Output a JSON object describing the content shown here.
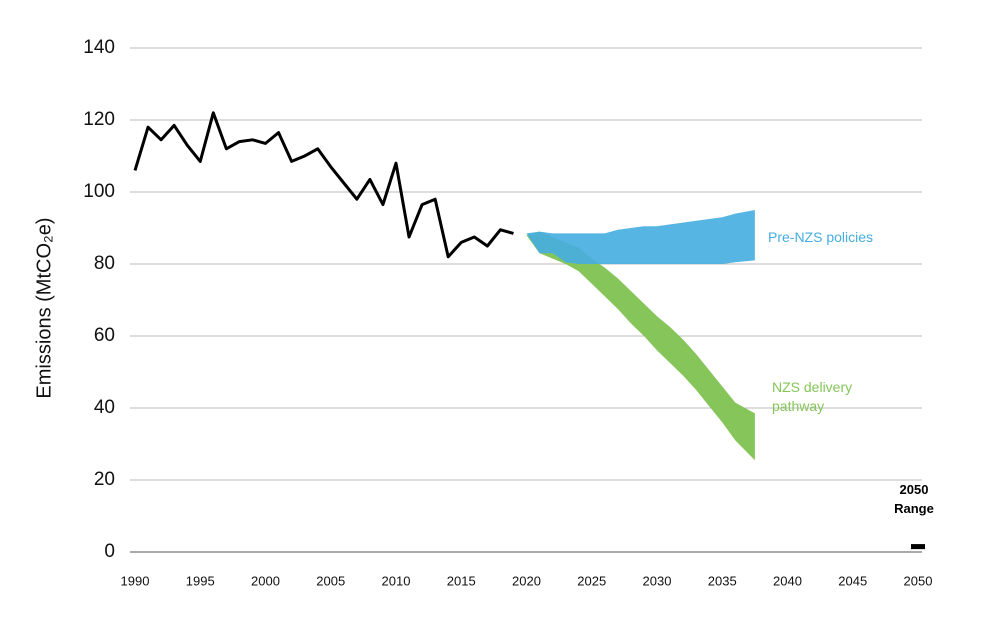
{
  "chart_data": {
    "type": "line",
    "y_label": "Emissions (MtCO₂e)",
    "xlim": [
      1990,
      2050
    ],
    "xticks": [
      1990,
      1995,
      2000,
      2005,
      2010,
      2015,
      2020,
      2025,
      2030,
      2035,
      2040,
      2045,
      2050
    ],
    "ylim": [
      0,
      140
    ],
    "yticks": [
      0,
      20,
      40,
      60,
      80,
      100,
      120,
      140
    ],
    "grid": true,
    "series": [
      {
        "name": null,
        "type": "line",
        "color": "#000000",
        "x": [
          1990,
          1991,
          1992,
          1993,
          1994,
          1995,
          1996,
          1997,
          1998,
          1999,
          2000,
          2001,
          2002,
          2003,
          2004,
          2005,
          2006,
          2007,
          2008,
          2009,
          2010,
          2011,
          2012,
          2013,
          2014,
          2015,
          2016,
          2017,
          2018,
          2019
        ],
        "values": [
          106,
          118,
          114.5,
          118.5,
          113,
          108.5,
          122,
          112,
          114,
          114.5,
          113.5,
          116.5,
          108.5,
          110,
          112,
          107,
          102.5,
          98,
          103.5,
          96.5,
          108,
          87.5,
          96.5,
          98,
          82,
          86,
          87.5,
          85,
          89.5,
          88.5
        ]
      },
      {
        "name": "NZS delivery pathway",
        "type": "band",
        "color": "#86c55a",
        "x": [
          2020,
          2021,
          2022,
          2023,
          2024,
          2025,
          2026,
          2027,
          2028,
          2029,
          2030,
          2031,
          2032,
          2033,
          2034,
          2035,
          2036,
          2037.5
        ],
        "upper": [
          88,
          89,
          87.5,
          86,
          84.5,
          81.5,
          79,
          76,
          72.5,
          69,
          65.5,
          62.5,
          59,
          55,
          50.5,
          46,
          41.5,
          38.5
        ],
        "lower": [
          88,
          83,
          81.5,
          80,
          78,
          74.5,
          71,
          67.5,
          63.5,
          60,
          56,
          52.5,
          49,
          45,
          40.5,
          36,
          31,
          25.5
        ]
      },
      {
        "name": "Pre-NZS policies",
        "type": "band",
        "color": "#45ade0",
        "x": [
          2020,
          2021,
          2022,
          2023,
          2024,
          2025,
          2026,
          2027,
          2028,
          2029,
          2030,
          2031,
          2032,
          2033,
          2034,
          2035,
          2036,
          2037.5
        ],
        "upper": [
          88.5,
          89,
          88.5,
          88.5,
          88.5,
          88.5,
          88.5,
          89.5,
          90,
          90.5,
          90.5,
          91,
          91.5,
          92,
          92.5,
          93,
          94,
          95
        ],
        "lower": [
          88.5,
          83,
          83,
          80.5,
          80,
          80,
          80,
          80,
          80,
          80,
          80,
          80,
          80,
          80,
          80,
          80,
          80.5,
          81
        ]
      },
      {
        "name": "2050 Range",
        "type": "range",
        "color": "#000000",
        "x": 2050,
        "low": 0.8,
        "high": 2.2
      }
    ]
  }
}
